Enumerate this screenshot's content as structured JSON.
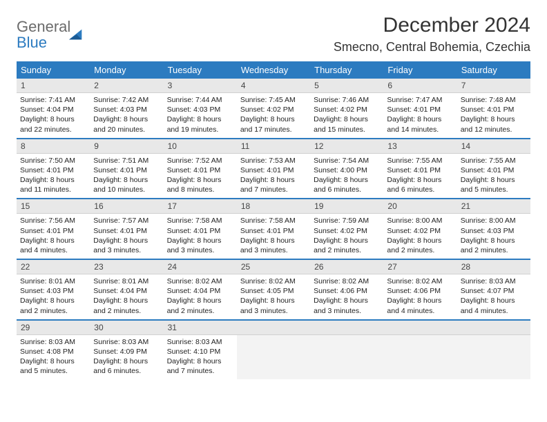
{
  "logo": {
    "text1": "General",
    "text2": "Blue"
  },
  "title": "December 2024",
  "location": "Smecno, Central Bohemia, Czechia",
  "colors": {
    "header_bg": "#2c7bc0",
    "header_text": "#ffffff",
    "daynum_bg": "#e8e8e8",
    "row_border": "#2c7bc0",
    "empty_bg": "#f3f3f3",
    "logo_gray": "#6b6b6b",
    "logo_blue": "#2c7bc0"
  },
  "dayHeaders": [
    "Sunday",
    "Monday",
    "Tuesday",
    "Wednesday",
    "Thursday",
    "Friday",
    "Saturday"
  ],
  "weeks": [
    [
      {
        "num": "1",
        "sunrise": "Sunrise: 7:41 AM",
        "sunset": "Sunset: 4:04 PM",
        "daylight": "Daylight: 8 hours and 22 minutes."
      },
      {
        "num": "2",
        "sunrise": "Sunrise: 7:42 AM",
        "sunset": "Sunset: 4:03 PM",
        "daylight": "Daylight: 8 hours and 20 minutes."
      },
      {
        "num": "3",
        "sunrise": "Sunrise: 7:44 AM",
        "sunset": "Sunset: 4:03 PM",
        "daylight": "Daylight: 8 hours and 19 minutes."
      },
      {
        "num": "4",
        "sunrise": "Sunrise: 7:45 AM",
        "sunset": "Sunset: 4:02 PM",
        "daylight": "Daylight: 8 hours and 17 minutes."
      },
      {
        "num": "5",
        "sunrise": "Sunrise: 7:46 AM",
        "sunset": "Sunset: 4:02 PM",
        "daylight": "Daylight: 8 hours and 15 minutes."
      },
      {
        "num": "6",
        "sunrise": "Sunrise: 7:47 AM",
        "sunset": "Sunset: 4:01 PM",
        "daylight": "Daylight: 8 hours and 14 minutes."
      },
      {
        "num": "7",
        "sunrise": "Sunrise: 7:48 AM",
        "sunset": "Sunset: 4:01 PM",
        "daylight": "Daylight: 8 hours and 12 minutes."
      }
    ],
    [
      {
        "num": "8",
        "sunrise": "Sunrise: 7:50 AM",
        "sunset": "Sunset: 4:01 PM",
        "daylight": "Daylight: 8 hours and 11 minutes."
      },
      {
        "num": "9",
        "sunrise": "Sunrise: 7:51 AM",
        "sunset": "Sunset: 4:01 PM",
        "daylight": "Daylight: 8 hours and 10 minutes."
      },
      {
        "num": "10",
        "sunrise": "Sunrise: 7:52 AM",
        "sunset": "Sunset: 4:01 PM",
        "daylight": "Daylight: 8 hours and 8 minutes."
      },
      {
        "num": "11",
        "sunrise": "Sunrise: 7:53 AM",
        "sunset": "Sunset: 4:01 PM",
        "daylight": "Daylight: 8 hours and 7 minutes."
      },
      {
        "num": "12",
        "sunrise": "Sunrise: 7:54 AM",
        "sunset": "Sunset: 4:00 PM",
        "daylight": "Daylight: 8 hours and 6 minutes."
      },
      {
        "num": "13",
        "sunrise": "Sunrise: 7:55 AM",
        "sunset": "Sunset: 4:01 PM",
        "daylight": "Daylight: 8 hours and 6 minutes."
      },
      {
        "num": "14",
        "sunrise": "Sunrise: 7:55 AM",
        "sunset": "Sunset: 4:01 PM",
        "daylight": "Daylight: 8 hours and 5 minutes."
      }
    ],
    [
      {
        "num": "15",
        "sunrise": "Sunrise: 7:56 AM",
        "sunset": "Sunset: 4:01 PM",
        "daylight": "Daylight: 8 hours and 4 minutes."
      },
      {
        "num": "16",
        "sunrise": "Sunrise: 7:57 AM",
        "sunset": "Sunset: 4:01 PM",
        "daylight": "Daylight: 8 hours and 3 minutes."
      },
      {
        "num": "17",
        "sunrise": "Sunrise: 7:58 AM",
        "sunset": "Sunset: 4:01 PM",
        "daylight": "Daylight: 8 hours and 3 minutes."
      },
      {
        "num": "18",
        "sunrise": "Sunrise: 7:58 AM",
        "sunset": "Sunset: 4:01 PM",
        "daylight": "Daylight: 8 hours and 3 minutes."
      },
      {
        "num": "19",
        "sunrise": "Sunrise: 7:59 AM",
        "sunset": "Sunset: 4:02 PM",
        "daylight": "Daylight: 8 hours and 2 minutes."
      },
      {
        "num": "20",
        "sunrise": "Sunrise: 8:00 AM",
        "sunset": "Sunset: 4:02 PM",
        "daylight": "Daylight: 8 hours and 2 minutes."
      },
      {
        "num": "21",
        "sunrise": "Sunrise: 8:00 AM",
        "sunset": "Sunset: 4:03 PM",
        "daylight": "Daylight: 8 hours and 2 minutes."
      }
    ],
    [
      {
        "num": "22",
        "sunrise": "Sunrise: 8:01 AM",
        "sunset": "Sunset: 4:03 PM",
        "daylight": "Daylight: 8 hours and 2 minutes."
      },
      {
        "num": "23",
        "sunrise": "Sunrise: 8:01 AM",
        "sunset": "Sunset: 4:04 PM",
        "daylight": "Daylight: 8 hours and 2 minutes."
      },
      {
        "num": "24",
        "sunrise": "Sunrise: 8:02 AM",
        "sunset": "Sunset: 4:04 PM",
        "daylight": "Daylight: 8 hours and 2 minutes."
      },
      {
        "num": "25",
        "sunrise": "Sunrise: 8:02 AM",
        "sunset": "Sunset: 4:05 PM",
        "daylight": "Daylight: 8 hours and 3 minutes."
      },
      {
        "num": "26",
        "sunrise": "Sunrise: 8:02 AM",
        "sunset": "Sunset: 4:06 PM",
        "daylight": "Daylight: 8 hours and 3 minutes."
      },
      {
        "num": "27",
        "sunrise": "Sunrise: 8:02 AM",
        "sunset": "Sunset: 4:06 PM",
        "daylight": "Daylight: 8 hours and 4 minutes."
      },
      {
        "num": "28",
        "sunrise": "Sunrise: 8:03 AM",
        "sunset": "Sunset: 4:07 PM",
        "daylight": "Daylight: 8 hours and 4 minutes."
      }
    ],
    [
      {
        "num": "29",
        "sunrise": "Sunrise: 8:03 AM",
        "sunset": "Sunset: 4:08 PM",
        "daylight": "Daylight: 8 hours and 5 minutes."
      },
      {
        "num": "30",
        "sunrise": "Sunrise: 8:03 AM",
        "sunset": "Sunset: 4:09 PM",
        "daylight": "Daylight: 8 hours and 6 minutes."
      },
      {
        "num": "31",
        "sunrise": "Sunrise: 8:03 AM",
        "sunset": "Sunset: 4:10 PM",
        "daylight": "Daylight: 8 hours and 7 minutes."
      },
      null,
      null,
      null,
      null
    ]
  ]
}
